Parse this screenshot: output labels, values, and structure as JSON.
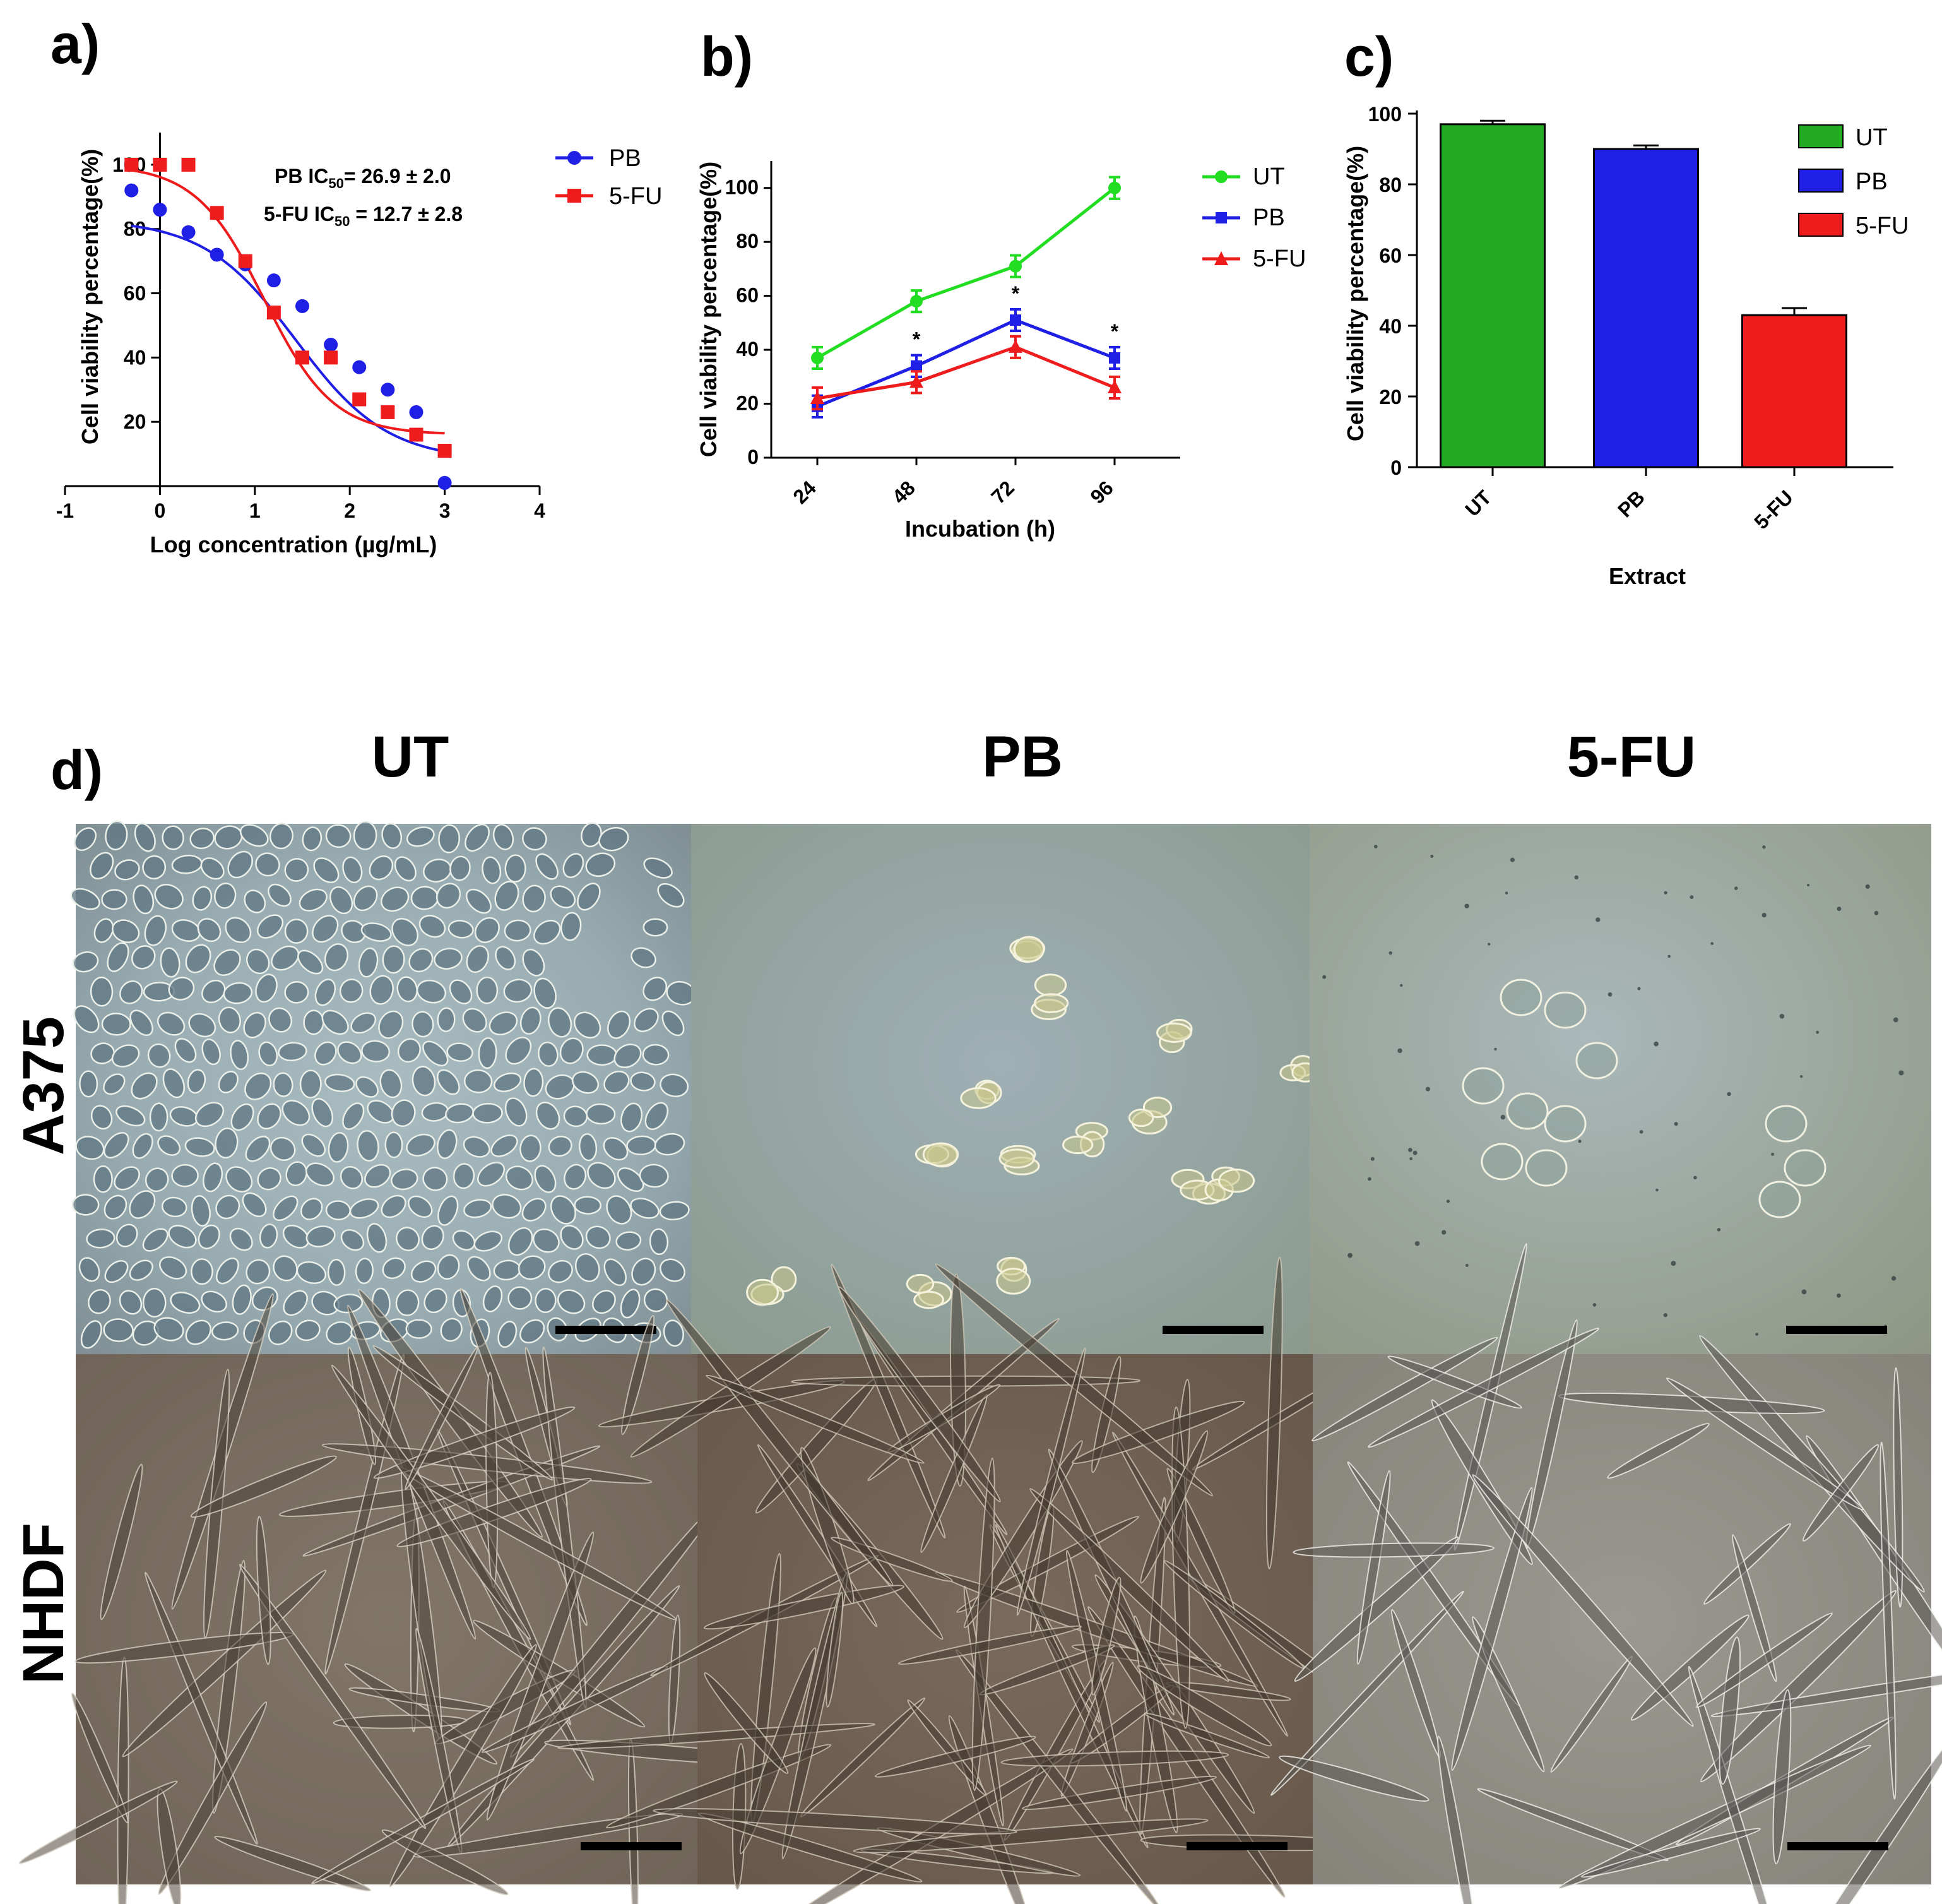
{
  "panel_labels": {
    "a": "a)",
    "b": "b)",
    "c": "c)",
    "d": "d)"
  },
  "colors": {
    "PB": "#1f1fe6",
    "5-FU": "#ee1c1c",
    "UT": "#22dd22",
    "UT_bar": "#22aa22"
  },
  "chart_data": [
    {
      "type": "scatter",
      "title": "",
      "xlabel": "Log concentration (µg/mL)",
      "ylabel": "Cell viability percentage(%)",
      "xlim": [
        -1,
        4
      ],
      "ylim": [
        0,
        110
      ],
      "x_ticks": [
        "-1",
        "0",
        "1",
        "2",
        "3",
        "4"
      ],
      "y_ticks": [
        "20",
        "40",
        "60",
        "80",
        "100"
      ],
      "annotations": [
        "PB IC50= 26.9 ± 2.0",
        "5-FU IC50 = 12.7 ± 2.8"
      ],
      "series": [
        {
          "name": "PB",
          "color": "#1f1fe6",
          "marker": "circle",
          "x": [
            -0.3,
            0,
            0.3,
            0.6,
            0.9,
            1.2,
            1.5,
            1.8,
            2.1,
            2.4,
            2.7,
            3.0
          ],
          "y": [
            92,
            86,
            79,
            72,
            69,
            64,
            56,
            44,
            37,
            30,
            23,
            1
          ],
          "fit": {
            "top": 83,
            "bottom": 8,
            "logIC50": 1.43,
            "hill": 0.9
          }
        },
        {
          "name": "5-FU",
          "color": "#ee1c1c",
          "marker": "square",
          "x": [
            -0.3,
            0,
            0.3,
            0.6,
            0.9,
            1.2,
            1.5,
            1.8,
            2.1,
            2.4,
            2.7,
            3.0
          ],
          "y": [
            100,
            100,
            100,
            85,
            70,
            54,
            40,
            40,
            27,
            23,
            16,
            11
          ],
          "fit": {
            "top": 100,
            "bottom": 16,
            "logIC50": 1.1,
            "hill": 1.2
          }
        }
      ],
      "legend": [
        "PB",
        "5-FU"
      ]
    },
    {
      "type": "line",
      "xlabel": "Incubation (h)",
      "ylabel": "Cell viability percentage(%)",
      "categories": [
        "24",
        "48",
        "72",
        "96"
      ],
      "ylim": [
        0,
        110
      ],
      "y_ticks": [
        "0",
        "20",
        "40",
        "60",
        "80",
        "100"
      ],
      "series": [
        {
          "name": "UT",
          "color": "#22dd22",
          "marker": "circle",
          "values": [
            37,
            58,
            71,
            100
          ],
          "errors": [
            4,
            4,
            4,
            4
          ]
        },
        {
          "name": "PB",
          "color": "#1f1fe6",
          "marker": "square",
          "values": [
            19,
            34,
            51,
            37
          ],
          "errors": [
            4,
            4,
            4,
            4
          ]
        },
        {
          "name": "5-FU",
          "color": "#ee1c1c",
          "marker": "triangle",
          "values": [
            22,
            28,
            41,
            26
          ],
          "errors": [
            4,
            4,
            4,
            4
          ]
        }
      ],
      "significance": [
        {
          "category": "48",
          "label": "*"
        },
        {
          "category": "72",
          "label": "*"
        },
        {
          "category": "96",
          "label": "*"
        }
      ],
      "legend": [
        "UT",
        "PB",
        "5-FU"
      ]
    },
    {
      "type": "bar",
      "xlabel": "Extract",
      "ylabel": "Cell viability percentage(%)",
      "categories": [
        "UT",
        "PB",
        "5-FU"
      ],
      "values": [
        97,
        90,
        43
      ],
      "errors": [
        1,
        1,
        2
      ],
      "colors": [
        "#22aa22",
        "#1f1fe6",
        "#ee1c1c"
      ],
      "ylim": [
        0,
        100
      ],
      "y_ticks": [
        "0",
        "20",
        "40",
        "60",
        "80",
        "100"
      ],
      "legend": [
        "UT",
        "PB",
        "5-FU"
      ]
    }
  ],
  "micrographs": {
    "columns": [
      "UT",
      "PB",
      "5-FU"
    ],
    "rows": [
      "A375",
      "NHDF"
    ]
  }
}
